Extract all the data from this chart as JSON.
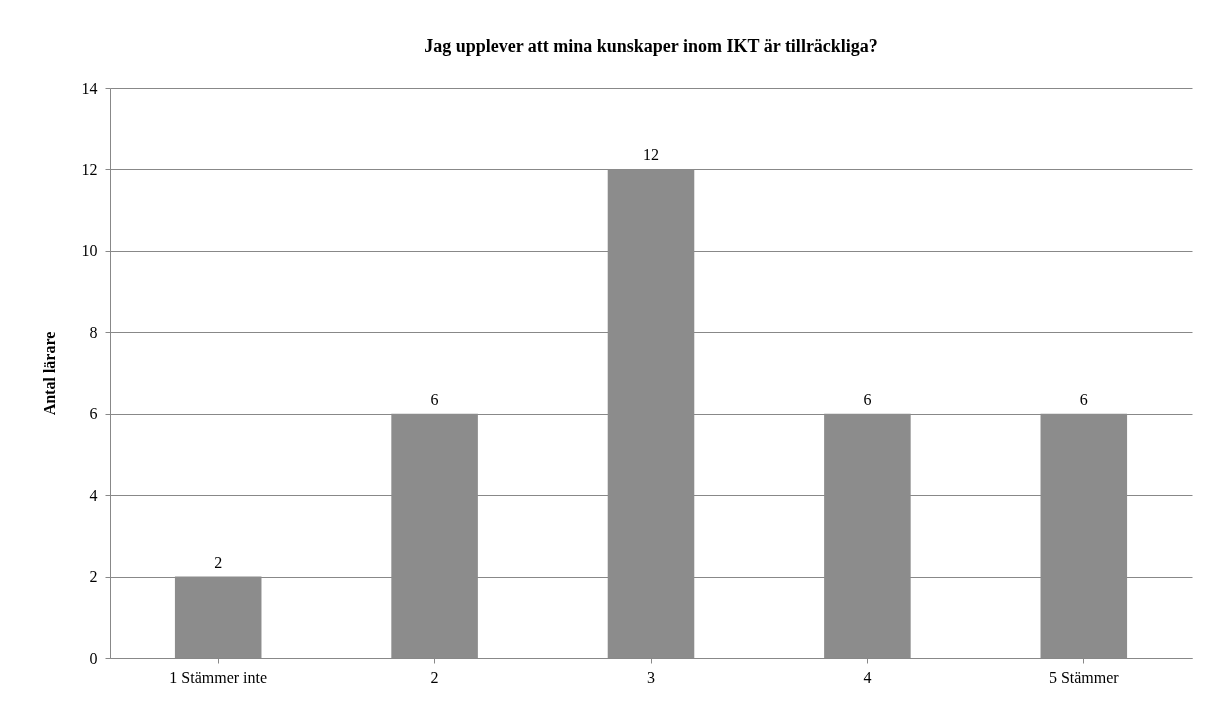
{
  "chart_data": {
    "type": "bar",
    "title": "Jag upplever att mina kunskaper inom IKT är tillräckliga?",
    "ylabel": "Antal lärare",
    "categories": [
      "1 Stämmer inte",
      "2",
      "3",
      "4",
      "5 Stämmer"
    ],
    "values": [
      2,
      6,
      12,
      6,
      6
    ],
    "color": "#8c8c8c",
    "ylim": [
      0,
      14
    ],
    "yticks": [
      0,
      2,
      4,
      6,
      8,
      10,
      12,
      14
    ],
    "grid": "y",
    "data_labels": true
  }
}
